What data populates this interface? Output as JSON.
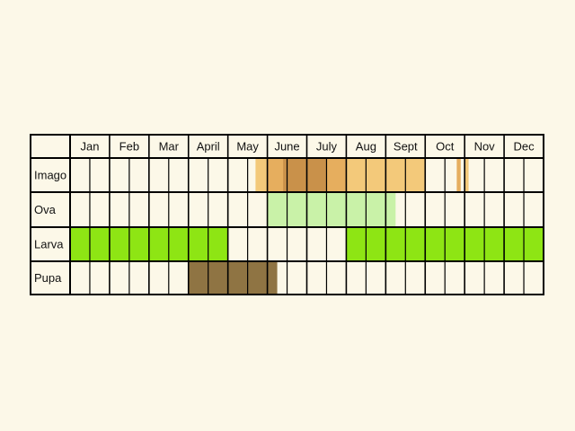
{
  "chart_data": {
    "type": "table",
    "title": "",
    "months": [
      "Jan",
      "Feb",
      "Mar",
      "April",
      "May",
      "June",
      "July",
      "Aug",
      "Sept",
      "Oct",
      "Nov",
      "Dec"
    ],
    "subdivisions_per_month": 2,
    "colors": {
      "background": "#fcf8e8",
      "grid": "#000000",
      "imago_light": "#f3c97a",
      "imago_mid": "#e6ae5e",
      "imago_dark": "#c9914a",
      "ova": "#c9f2a8",
      "larva": "#8ee514",
      "pupa": "#8f7443"
    },
    "rows": [
      {
        "label": "Imago",
        "periods": [
          {
            "start_month": 4.7,
            "end_month": 9.0,
            "shade": "imago_light"
          },
          {
            "start_month": 5.0,
            "end_month": 7.0,
            "shade": "imago_mid"
          },
          {
            "start_month": 5.4,
            "end_month": 6.5,
            "shade": "imago_dark"
          },
          {
            "start_month": 9.8,
            "end_month": 9.9,
            "shade": "imago_mid"
          },
          {
            "start_month": 10.0,
            "end_month": 10.1,
            "shade": "imago_light"
          }
        ]
      },
      {
        "label": "Ova",
        "periods": [
          {
            "start_month": 5.0,
            "end_month": 8.25,
            "shade": "ova"
          }
        ]
      },
      {
        "label": "Larva",
        "periods": [
          {
            "start_month": 0.0,
            "end_month": 4.0,
            "shade": "larva"
          },
          {
            "start_month": 7.0,
            "end_month": 12.0,
            "shade": "larva"
          }
        ]
      },
      {
        "label": "Pupa",
        "periods": [
          {
            "start_month": 3.0,
            "end_month": 5.25,
            "shade": "pupa"
          }
        ]
      }
    ]
  }
}
